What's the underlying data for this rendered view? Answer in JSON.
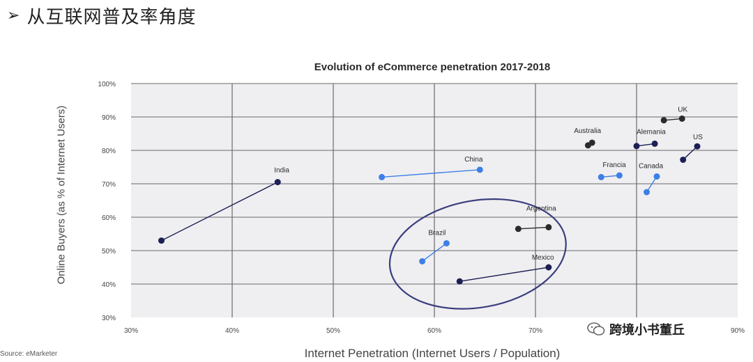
{
  "heading": {
    "bullet": "➢",
    "text": "从互联网普及率角度"
  },
  "source": "Source: eMarketer",
  "watermark": {
    "text": "跨境小书董丘"
  },
  "colors": {
    "plot_bg": "#efeff1",
    "grid": "#6a6a6a",
    "dark": "#2b2b2b",
    "navy": "#1d1f55",
    "blue": "#3d7fe6",
    "ellipse": "#3a3d7e"
  },
  "chart_data": {
    "type": "scatter",
    "title": "Evolution of eCommerce penetration 2017-2018",
    "xlabel": "Internet Penetration (Internet Users / Population)",
    "ylabel": "Online Buyers (as % of Internet Users)",
    "xlim": [
      0.3,
      0.9
    ],
    "ylim": [
      0.3,
      1.0
    ],
    "xticks": [
      "30%",
      "40%",
      "50%",
      "60%",
      "70%",
      "80%",
      "90%"
    ],
    "yticks": [
      "30%",
      "40%",
      "50%",
      "60%",
      "70%",
      "80%",
      "90%",
      "100%"
    ],
    "grid": true,
    "series": [
      {
        "name": "India",
        "color": "navy",
        "from": [
          0.33,
          0.53
        ],
        "to": [
          0.445,
          0.705
        ]
      },
      {
        "name": "China",
        "color": "blue",
        "from": [
          0.548,
          0.72
        ],
        "to": [
          0.645,
          0.742
        ]
      },
      {
        "name": "Brazil",
        "color": "blue",
        "from": [
          0.588,
          0.468
        ],
        "to": [
          0.612,
          0.522
        ]
      },
      {
        "name": "Mexico",
        "color": "navy",
        "from": [
          0.625,
          0.408
        ],
        "to": [
          0.713,
          0.45
        ]
      },
      {
        "name": "Argentina",
        "color": "dark",
        "from": [
          0.683,
          0.565
        ],
        "to": [
          0.713,
          0.57
        ]
      },
      {
        "name": "Australia",
        "color": "dark",
        "from": [
          0.752,
          0.815
        ],
        "to": [
          0.756,
          0.823
        ]
      },
      {
        "name": "Francia",
        "color": "blue",
        "from": [
          0.765,
          0.72
        ],
        "to": [
          0.783,
          0.725
        ]
      },
      {
        "name": "Alemania",
        "color": "navy",
        "from": [
          0.8,
          0.813
        ],
        "to": [
          0.818,
          0.82
        ]
      },
      {
        "name": "Canada",
        "color": "blue",
        "from": [
          0.81,
          0.675
        ],
        "to": [
          0.82,
          0.722
        ]
      },
      {
        "name": "UK",
        "color": "dark",
        "from": [
          0.827,
          0.89
        ],
        "to": [
          0.845,
          0.895
        ]
      },
      {
        "name": "US",
        "color": "navy",
        "from": [
          0.846,
          0.772
        ],
        "to": [
          0.86,
          0.812
        ]
      }
    ],
    "highlight": {
      "shape": "ellipse",
      "center": [
        0.643,
        0.49
      ],
      "radii": [
        0.088,
        0.16
      ],
      "color": "ellipse"
    }
  }
}
